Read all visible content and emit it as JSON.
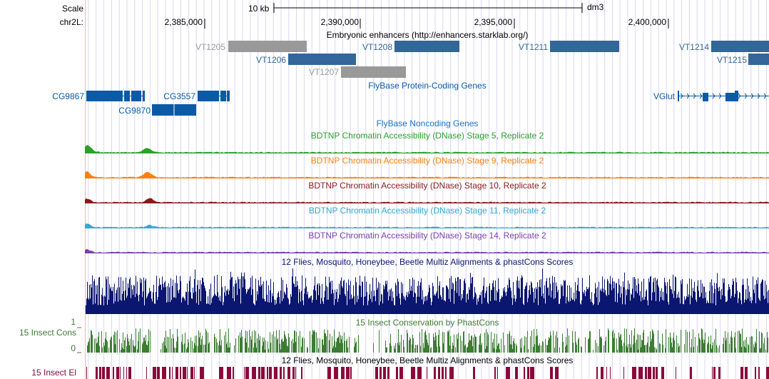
{
  "browser": {
    "assembly": "dm3",
    "scale_label": "Scale",
    "scale_value": "10 kb",
    "chrom_label": "chr2L:",
    "positions": [
      "2,385,000",
      "2,390,000",
      "2,395,000",
      "2,400,000"
    ]
  },
  "tracks": {
    "enhancers": {
      "title": "Embryonic enhancers (http://enhancers.starklab.org/)",
      "items": [
        {
          "name": "VT1205",
          "color": "#999999"
        },
        {
          "name": "VT1206",
          "color": "#336699"
        },
        {
          "name": "VT1207",
          "color": "#999999"
        },
        {
          "name": "VT1208",
          "color": "#336699"
        },
        {
          "name": "VT1211",
          "color": "#336699"
        },
        {
          "name": "VT1214",
          "color": "#336699"
        },
        {
          "name": "VT1215",
          "color": "#336699"
        }
      ]
    },
    "genes": {
      "title": "FlyBase Protein-Coding Genes",
      "color": "#0a5aa6",
      "items": [
        "CG9867",
        "CG3557",
        "CG9870",
        "VGlut"
      ]
    },
    "noncoding": {
      "title": "FlyBase Noncoding Genes",
      "color": "#1b70c6"
    },
    "dnase": [
      {
        "title": "BDTNP Chromatin Accessibility (DNase) Stage 5, Replicate 2",
        "color": "#2ca02c"
      },
      {
        "title": "BDTNP Chromatin Accessibility (DNase) Stage 9, Replicate 2",
        "color": "#ff7f0e"
      },
      {
        "title": "BDTNP Chromatin Accessibility (DNase) Stage 10, Replicate 2",
        "color": "#8b1a1a"
      },
      {
        "title": "BDTNP Chromatin Accessibility (DNase) Stage 11, Replicate 2",
        "color": "#35a7d3"
      },
      {
        "title": "BDTNP Chromatin Accessibility (DNase) Stage 14, Replicate 2",
        "color": "#7b3fa8"
      }
    ],
    "multiz": {
      "title": "12 Flies, Mosquito, Honeybee, Beetle Multiz Alignments & phastCons Scores",
      "color": "#0a1670"
    },
    "phastcons": {
      "title": "15 Insect Conservation by PhastCons",
      "side_label": "15 Insect Cons",
      "ymax": "1",
      "ymin": "0",
      "color": "#3c7d33"
    },
    "elements": {
      "title": "12 Flies, Mosquito, Honeybee, Beetle Multiz Alignments & phastCons Scores",
      "side_label": "15 Insect El",
      "color": "#8b0a3a"
    }
  }
}
